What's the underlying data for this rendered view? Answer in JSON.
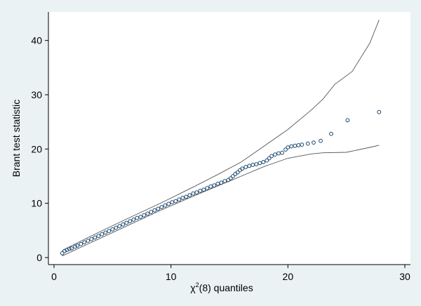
{
  "chart_data": {
    "type": "scatter",
    "xlabel_main": "χ",
    "xlabel_sup": "2",
    "xlabel_rest": "(8) quantiles",
    "ylabel": "Brant test statistic",
    "xlim": [
      0,
      30
    ],
    "ylim": [
      0,
      45
    ],
    "xticks": [
      0,
      10,
      20,
      30
    ],
    "yticks": [
      0,
      10,
      20,
      30,
      40
    ],
    "grid": false,
    "colors": {
      "background": "#eaf2f3",
      "plot_area": "#ffffff",
      "marker": "#1a476f",
      "envelope": "#555555"
    },
    "series": [
      {
        "type": "scatter",
        "marker": "hollow-circle",
        "points": [
          [
            0.7,
            0.8
          ],
          [
            0.9,
            1.2
          ],
          [
            1.1,
            1.4
          ],
          [
            1.3,
            1.6
          ],
          [
            1.5,
            1.7
          ],
          [
            1.8,
            2.0
          ],
          [
            2.0,
            2.2
          ],
          [
            2.3,
            2.5
          ],
          [
            2.6,
            2.8
          ],
          [
            2.9,
            3.1
          ],
          [
            3.2,
            3.4
          ],
          [
            3.5,
            3.7
          ],
          [
            3.8,
            4.0
          ],
          [
            4.1,
            4.3
          ],
          [
            4.4,
            4.6
          ],
          [
            4.7,
            4.9
          ],
          [
            5.0,
            5.2
          ],
          [
            5.3,
            5.5
          ],
          [
            5.6,
            5.8
          ],
          [
            5.9,
            6.1
          ],
          [
            6.2,
            6.4
          ],
          [
            6.5,
            6.7
          ],
          [
            6.8,
            7.0
          ],
          [
            7.1,
            7.3
          ],
          [
            7.4,
            7.5
          ],
          [
            7.7,
            7.8
          ],
          [
            8.0,
            8.1
          ],
          [
            8.3,
            8.4
          ],
          [
            8.6,
            8.7
          ],
          [
            8.9,
            9.0
          ],
          [
            9.2,
            9.3
          ],
          [
            9.5,
            9.6
          ],
          [
            9.8,
            9.9
          ],
          [
            10.1,
            10.2
          ],
          [
            10.4,
            10.4
          ],
          [
            10.7,
            10.7
          ],
          [
            11.0,
            11.0
          ],
          [
            11.3,
            11.2
          ],
          [
            11.6,
            11.5
          ],
          [
            11.9,
            11.8
          ],
          [
            12.2,
            12.0
          ],
          [
            12.5,
            12.3
          ],
          [
            12.8,
            12.5
          ],
          [
            13.1,
            12.8
          ],
          [
            13.4,
            13.1
          ],
          [
            13.7,
            13.3
          ],
          [
            14.0,
            13.6
          ],
          [
            14.3,
            13.8
          ],
          [
            14.6,
            14.1
          ],
          [
            14.9,
            14.3
          ],
          [
            15.1,
            14.6
          ],
          [
            15.3,
            15.0
          ],
          [
            15.5,
            15.4
          ],
          [
            15.7,
            15.7
          ],
          [
            15.9,
            16.1
          ],
          [
            16.1,
            16.4
          ],
          [
            16.4,
            16.7
          ],
          [
            16.7,
            16.9
          ],
          [
            17.0,
            17.1
          ],
          [
            17.3,
            17.2
          ],
          [
            17.6,
            17.4
          ],
          [
            17.9,
            17.6
          ],
          [
            18.2,
            17.9
          ],
          [
            18.4,
            18.3
          ],
          [
            18.6,
            18.7
          ],
          [
            18.9,
            19.0
          ],
          [
            19.2,
            19.2
          ],
          [
            19.5,
            19.3
          ],
          [
            19.8,
            19.9
          ],
          [
            20.0,
            20.3
          ],
          [
            20.3,
            20.5
          ],
          [
            20.6,
            20.6
          ],
          [
            20.9,
            20.7
          ],
          [
            21.2,
            20.8
          ],
          [
            21.7,
            21.0
          ],
          [
            22.2,
            21.2
          ],
          [
            22.8,
            21.5
          ],
          [
            23.7,
            22.8
          ],
          [
            25.1,
            25.3
          ],
          [
            27.8,
            26.8
          ]
        ]
      },
      {
        "type": "line",
        "role": "upper-envelope",
        "points": [
          [
            0.7,
            1.3
          ],
          [
            3,
            3.8
          ],
          [
            6,
            6.9
          ],
          [
            9,
            9.9
          ],
          [
            12,
            13.1
          ],
          [
            14,
            15.3
          ],
          [
            16,
            17.6
          ],
          [
            18,
            20.6
          ],
          [
            20,
            23.6
          ],
          [
            22,
            27.2
          ],
          [
            23,
            29.2
          ],
          [
            24,
            31.9
          ],
          [
            25.5,
            34.3
          ],
          [
            27,
            39.5
          ],
          [
            27.8,
            43.8
          ]
        ]
      },
      {
        "type": "line",
        "role": "lower-envelope",
        "points": [
          [
            0.7,
            0.3
          ],
          [
            3,
            2.6
          ],
          [
            6,
            5.6
          ],
          [
            9,
            8.6
          ],
          [
            12,
            11.4
          ],
          [
            14,
            13.2
          ],
          [
            16,
            15.0
          ],
          [
            18,
            16.8
          ],
          [
            20,
            18.3
          ],
          [
            22,
            19.1
          ],
          [
            23,
            19.3
          ],
          [
            25,
            19.4
          ],
          [
            27,
            20.3
          ],
          [
            27.8,
            20.7
          ]
        ]
      }
    ]
  }
}
